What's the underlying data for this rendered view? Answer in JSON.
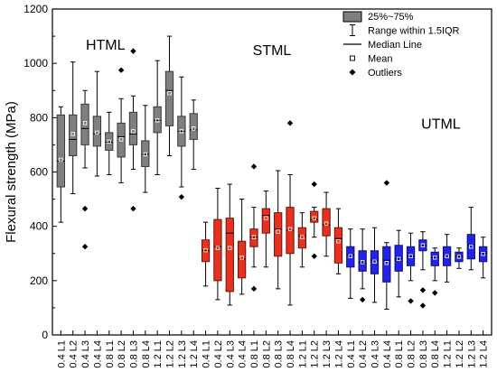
{
  "chart_data": {
    "type": "box",
    "ylabel": "Flexural strength (MPa)",
    "xlabel": "",
    "ylim": [
      0,
      1200
    ],
    "yticks": [
      0,
      200,
      400,
      600,
      800,
      1000,
      1200
    ],
    "legend": {
      "placement": "top-right",
      "entries": [
        {
          "key": "box",
          "label": "25%~75%"
        },
        {
          "key": "whisker",
          "label": "Range within 1.5IQR"
        },
        {
          "key": "median",
          "label": "Median Line"
        },
        {
          "key": "mean",
          "label": "Mean"
        },
        {
          "key": "outlier",
          "label": "Outliers"
        }
      ]
    },
    "group_labels": [
      {
        "text": "HTML",
        "x": 3.7,
        "y": 1050
      },
      {
        "text": "STML",
        "x": 17.5,
        "y": 1030
      },
      {
        "text": "UTML",
        "x": 31.5,
        "y": 760
      }
    ],
    "series_colors": {
      "HTML": "#7f7f7f",
      "STML": "#e8301e",
      "UTML": "#2424e6"
    },
    "boxes": [
      {
        "label": "0.4 L1",
        "group": "HTML",
        "q1": 545,
        "median": 640,
        "q3": 810,
        "mean": 645,
        "whisker_low": 415,
        "whisker_high": 840,
        "outliers": []
      },
      {
        "label": "0.4 L2",
        "group": "HTML",
        "q1": 660,
        "median": 720,
        "q3": 810,
        "mean": 740,
        "whisker_low": 520,
        "whisker_high": 1005,
        "outliers": []
      },
      {
        "label": "0.4 L3",
        "group": "HTML",
        "q1": 700,
        "median": 760,
        "q3": 850,
        "mean": 780,
        "whisker_low": 615,
        "whisker_high": 900,
        "outliers": [
          465,
          325
        ]
      },
      {
        "label": "0.4 L4",
        "group": "HTML",
        "q1": 695,
        "median": 740,
        "q3": 805,
        "mean": 745,
        "whisker_low": 585,
        "whisker_high": 970,
        "outliers": []
      },
      {
        "label": "0.8 L1",
        "group": "HTML",
        "q1": 680,
        "median": 710,
        "q3": 745,
        "mean": 712,
        "whisker_low": 590,
        "whisker_high": 820,
        "outliers": []
      },
      {
        "label": "0.8 L2",
        "group": "HTML",
        "q1": 655,
        "median": 730,
        "q3": 780,
        "mean": 720,
        "whisker_low": 560,
        "whisker_high": 870,
        "outliers": [
          975
        ]
      },
      {
        "label": "0.8 L3",
        "group": "HTML",
        "q1": 700,
        "median": 740,
        "q3": 820,
        "mean": 750,
        "whisker_low": 610,
        "whisker_high": 880,
        "outliers": [
          1045,
          465
        ]
      },
      {
        "label": "0.8 L4",
        "group": "HTML",
        "q1": 620,
        "median": 665,
        "q3": 715,
        "mean": 665,
        "whisker_low": 525,
        "whisker_high": 845,
        "outliers": []
      },
      {
        "label": "1.2 L1",
        "group": "HTML",
        "q1": 745,
        "median": 790,
        "q3": 840,
        "mean": 790,
        "whisker_low": 590,
        "whisker_high": 1010,
        "outliers": []
      },
      {
        "label": "1.2 L2",
        "group": "HTML",
        "q1": 770,
        "median": 900,
        "q3": 970,
        "mean": 890,
        "whisker_low": 660,
        "whisker_high": 1100,
        "outliers": []
      },
      {
        "label": "1.2 L3",
        "group": "HTML",
        "q1": 695,
        "median": 750,
        "q3": 805,
        "mean": 750,
        "whisker_low": 545,
        "whisker_high": 950,
        "outliers": [
          508
        ]
      },
      {
        "label": "1.2 L4",
        "group": "HTML",
        "q1": 720,
        "median": 755,
        "q3": 815,
        "mean": 760,
        "whisker_low": 610,
        "whisker_high": 865,
        "outliers": []
      },
      {
        "label": "0.4 L1",
        "group": "STML",
        "q1": 270,
        "median": 310,
        "q3": 350,
        "mean": 312,
        "whisker_low": 180,
        "whisker_high": 415,
        "outliers": []
      },
      {
        "label": "0.4 L2",
        "group": "STML",
        "q1": 200,
        "median": 325,
        "q3": 425,
        "mean": 320,
        "whisker_low": 130,
        "whisker_high": 540,
        "outliers": []
      },
      {
        "label": "0.4 L3",
        "group": "STML",
        "q1": 160,
        "median": 375,
        "q3": 430,
        "mean": 320,
        "whisker_low": 110,
        "whisker_high": 555,
        "outliers": []
      },
      {
        "label": "0.4 L4",
        "group": "STML",
        "q1": 210,
        "median": 280,
        "q3": 345,
        "mean": 285,
        "whisker_low": 150,
        "whisker_high": 500,
        "outliers": []
      },
      {
        "label": "0.8 L1",
        "group": "STML",
        "q1": 325,
        "median": 360,
        "q3": 390,
        "mean": 360,
        "whisker_low": 250,
        "whisker_high": 470,
        "outliers": [
          620,
          170
        ]
      },
      {
        "label": "0.8 L2",
        "group": "STML",
        "q1": 375,
        "median": 440,
        "q3": 465,
        "mean": 430,
        "whisker_low": 250,
        "whisker_high": 530,
        "outliers": []
      },
      {
        "label": "0.8 L3",
        "group": "STML",
        "q1": 290,
        "median": 390,
        "q3": 450,
        "mean": 380,
        "whisker_low": 170,
        "whisker_high": 605,
        "outliers": []
      },
      {
        "label": "0.8 L4",
        "group": "STML",
        "q1": 300,
        "median": 385,
        "q3": 470,
        "mean": 390,
        "whisker_low": 110,
        "whisker_high": 590,
        "outliers": [
          780
        ]
      },
      {
        "label": "1.2 L1",
        "group": "STML",
        "q1": 320,
        "median": 365,
        "q3": 395,
        "mean": 360,
        "whisker_low": 250,
        "whisker_high": 450,
        "outliers": []
      },
      {
        "label": "1.2 L2",
        "group": "STML",
        "q1": 415,
        "median": 425,
        "q3": 455,
        "mean": 430,
        "whisker_low": 360,
        "whisker_high": 470,
        "outliers": [
          555,
          290
        ]
      },
      {
        "label": "1.2 L3",
        "group": "STML",
        "q1": 365,
        "median": 405,
        "q3": 465,
        "mean": 410,
        "whisker_low": 290,
        "whisker_high": 525,
        "outliers": []
      },
      {
        "label": "1.2 L4",
        "group": "STML",
        "q1": 265,
        "median": 355,
        "q3": 395,
        "mean": 345,
        "whisker_low": 225,
        "whisker_high": 465,
        "outliers": []
      },
      {
        "label": "0.4 L1",
        "group": "UTML",
        "q1": 250,
        "median": 295,
        "q3": 325,
        "mean": 290,
        "whisker_low": 135,
        "whisker_high": 390,
        "outliers": []
      },
      {
        "label": "0.4 L2",
        "group": "UTML",
        "q1": 235,
        "median": 265,
        "q3": 310,
        "mean": 268,
        "whisker_low": 170,
        "whisker_high": 390,
        "outliers": [
          130
        ]
      },
      {
        "label": "0.4 L3",
        "group": "UTML",
        "q1": 225,
        "median": 275,
        "q3": 310,
        "mean": 270,
        "whisker_low": 120,
        "whisker_high": 395,
        "outliers": []
      },
      {
        "label": "0.4 L4",
        "group": "UTML",
        "q1": 195,
        "median": 275,
        "q3": 325,
        "mean": 265,
        "whisker_low": 95,
        "whisker_high": 340,
        "outliers": [
          560
        ]
      },
      {
        "label": "0.8 L1",
        "group": "UTML",
        "q1": 235,
        "median": 280,
        "q3": 330,
        "mean": 280,
        "whisker_low": 140,
        "whisker_high": 385,
        "outliers": []
      },
      {
        "label": "0.8 L2",
        "group": "UTML",
        "q1": 255,
        "median": 290,
        "q3": 325,
        "mean": 290,
        "whisker_low": 200,
        "whisker_high": 375,
        "outliers": [
          125
        ]
      },
      {
        "label": "0.8 L3",
        "group": "UTML",
        "q1": 310,
        "median": 330,
        "q3": 350,
        "mean": 330,
        "whisker_low": 240,
        "whisker_high": 380,
        "outliers": [
          165,
          108
        ]
      },
      {
        "label": "0.8 L4",
        "group": "UTML",
        "q1": 255,
        "median": 285,
        "q3": 305,
        "mean": 285,
        "whisker_low": 200,
        "whisker_high": 320,
        "outliers": [
          155
        ]
      },
      {
        "label": "1.2 L1",
        "group": "UTML",
        "q1": 255,
        "median": 295,
        "q3": 325,
        "mean": 290,
        "whisker_low": 195,
        "whisker_high": 370,
        "outliers": []
      },
      {
        "label": "1.2 L2",
        "group": "UTML",
        "q1": 270,
        "median": 290,
        "q3": 305,
        "mean": 288,
        "whisker_low": 245,
        "whisker_high": 320,
        "outliers": []
      },
      {
        "label": "1.2 L3",
        "group": "UTML",
        "q1": 280,
        "median": 330,
        "q3": 370,
        "mean": 325,
        "whisker_low": 240,
        "whisker_high": 470,
        "outliers": []
      },
      {
        "label": "1.2 L4",
        "group": "UTML",
        "q1": 270,
        "median": 300,
        "q3": 325,
        "mean": 298,
        "whisker_low": 210,
        "whisker_high": 360,
        "outliers": []
      }
    ]
  }
}
